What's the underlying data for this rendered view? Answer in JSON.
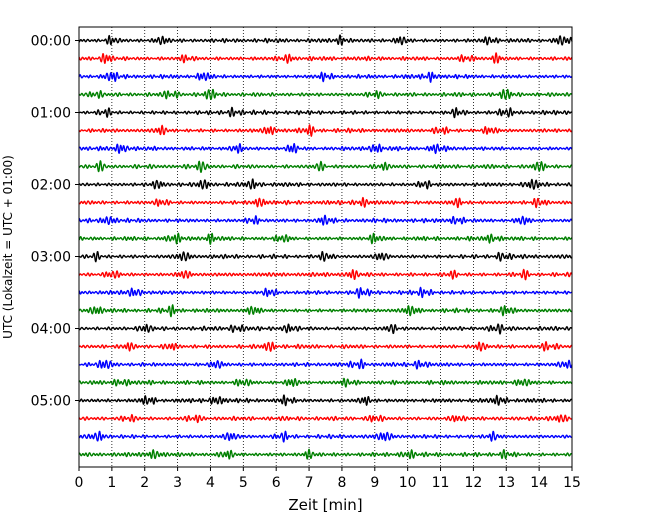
{
  "chart_data": {
    "type": "line",
    "title": "",
    "xlabel": "Zeit  [min]",
    "ylabel": "UTC (Lokalzeit = UTC + 01:00)",
    "xlim": [
      0,
      15
    ],
    "x_ticks": [
      "0",
      "1",
      "2",
      "3",
      "4",
      "5",
      "6",
      "7",
      "8",
      "9",
      "10",
      "11",
      "12",
      "13",
      "14",
      "15"
    ],
    "y_tick_labels": [
      "00:00",
      "01:00",
      "02:00",
      "03:00",
      "04:00",
      "05:00"
    ],
    "grid": "vertical dotted",
    "minutes_per_trace": 15,
    "trace_start_times": [
      "00:00",
      "00:15",
      "00:30",
      "00:45",
      "01:00",
      "01:15",
      "01:30",
      "01:45",
      "02:00",
      "02:15",
      "02:30",
      "02:45",
      "03:00",
      "03:15",
      "03:30",
      "03:45",
      "04:00",
      "04:15",
      "04:30",
      "04:45",
      "05:00",
      "05:15",
      "05:30",
      "05:45"
    ],
    "trace_colors": [
      "#000000",
      "#ff0000",
      "#0000ff",
      "#008000"
    ],
    "burst_minutes": [
      [
        1.0,
        2.5,
        8.0,
        9.8,
        12.5,
        14.7
      ],
      [
        0.8,
        3.3,
        6.3,
        11.8,
        12.7
      ],
      [
        1.0,
        3.8,
        7.5,
        10.7
      ],
      [
        0.5,
        2.8,
        4.0,
        9.0,
        13.0
      ],
      [
        0.8,
        4.7,
        11.5,
        13.0
      ],
      [
        2.5,
        5.8,
        7.0,
        11.0,
        12.5
      ],
      [
        1.3,
        4.8,
        6.5,
        9.0,
        10.9
      ],
      [
        0.6,
        3.7,
        7.3,
        9.2,
        14.0
      ],
      [
        2.4,
        3.8,
        5.3,
        10.5,
        13.8
      ],
      [
        2.5,
        5.5,
        8.6,
        11.5,
        14.0
      ],
      [
        0.9,
        5.3,
        7.5,
        11.5,
        13.5
      ],
      [
        2.9,
        4.0,
        6.2,
        9.0,
        12.6
      ],
      [
        0.5,
        3.2,
        7.5,
        9.2,
        12.9
      ],
      [
        1.0,
        3.2,
        8.3,
        11.3,
        13.5
      ],
      [
        1.7,
        5.8,
        8.6,
        10.5
      ],
      [
        0.5,
        2.8,
        5.3,
        10.1,
        13.0
      ],
      [
        2.0,
        4.8,
        6.4,
        9.5,
        12.7
      ],
      [
        1.5,
        2.8,
        5.8,
        12.2,
        14.3
      ],
      [
        0.8,
        4.2,
        8.5,
        10.4,
        14.8
      ],
      [
        1.3,
        5.0,
        6.5,
        8.2,
        13.5
      ],
      [
        2.1,
        4.2,
        6.3,
        8.7,
        12.8
      ],
      [
        1.5,
        3.5,
        9.0,
        11.5,
        14.6
      ],
      [
        0.6,
        4.6,
        6.2,
        9.3,
        12.6
      ],
      [
        2.3,
        4.5,
        7.0,
        10.0,
        13.0
      ]
    ]
  }
}
